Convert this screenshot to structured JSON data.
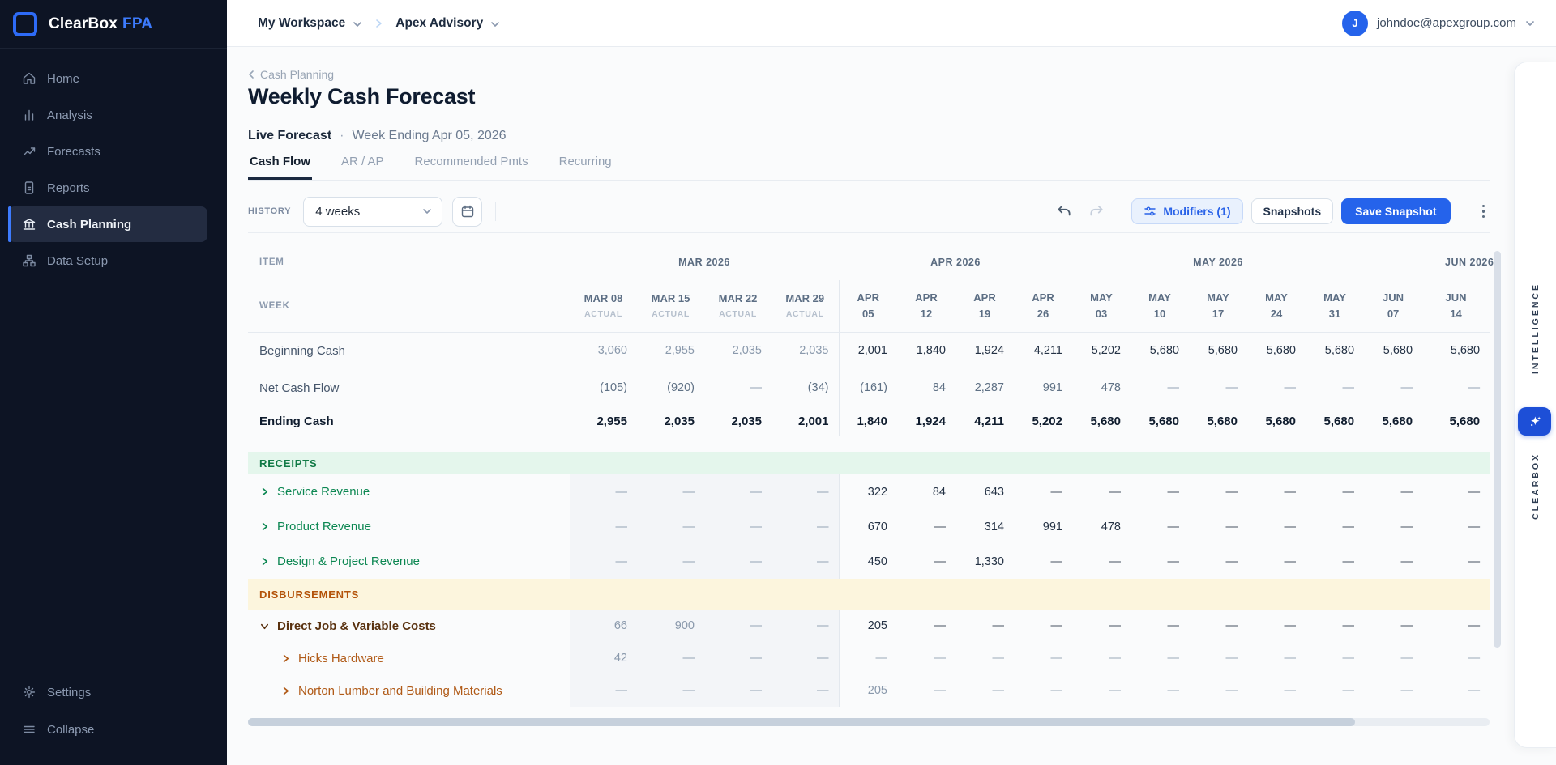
{
  "sidebar": {
    "brand": {
      "name": "ClearBox",
      "suffix": "FPA"
    },
    "items": [
      {
        "label": "Home",
        "icon": "home-icon",
        "active": false
      },
      {
        "label": "Analysis",
        "icon": "bar-chart-icon",
        "active": false
      },
      {
        "label": "Forecasts",
        "icon": "trend-icon",
        "active": false
      },
      {
        "label": "Reports",
        "icon": "document-icon",
        "active": false
      },
      {
        "label": "Cash Planning",
        "icon": "bank-icon",
        "active": true
      },
      {
        "label": "Data Setup",
        "icon": "sitemap-icon",
        "active": false
      }
    ],
    "footer": [
      {
        "label": "Settings",
        "icon": "gear-icon"
      },
      {
        "label": "Collapse",
        "icon": "hamburger-icon"
      }
    ]
  },
  "topbar": {
    "workspace": "My Workspace",
    "org": "Apex Advisory",
    "avatar_initial": "J",
    "user_email": "johndoe@apexgroup.com"
  },
  "header": {
    "breadcrumb": "Cash Planning",
    "title": "Weekly Cash Forecast",
    "status": "Live Forecast",
    "separator": "·",
    "week_ending": "Week Ending Apr 05, 2026",
    "tabs": [
      {
        "label": "Cash Flow",
        "active": true
      },
      {
        "label": "AR / AP",
        "active": false
      },
      {
        "label": "Recommended Pmts",
        "active": false
      },
      {
        "label": "Recurring",
        "active": false
      }
    ]
  },
  "toolbar": {
    "history_label": "HISTORY",
    "history_value": "4 weeks",
    "modifiers_label": "Modifiers (1)",
    "snapshots_label": "Snapshots",
    "save_label": "Save Snapshot"
  },
  "colors": {
    "accent_blue": "#2563eb",
    "receipts_green": "#117a46",
    "disbursements_amber": "#b45309",
    "sidebar_bg": "#0d1424"
  },
  "intelligence": {
    "top_text": "INTELLIGENCE",
    "bottom_text": "CLEARBOX",
    "icon": "sparkle-icon"
  },
  "table": {
    "item_header": "ITEM",
    "week_header": "WEEK",
    "actual_sub": "ACTUAL",
    "groups": [
      {
        "label": "MAR 2026",
        "span": 4,
        "clip": false
      },
      {
        "label": "APR 2026",
        "span": 4,
        "clip": false
      },
      {
        "label": "MAY 2026",
        "span": 5,
        "clip": false
      },
      {
        "label": "JUN 2026",
        "span": 2,
        "clip": true
      }
    ],
    "actual_cols": [
      "MAR 08",
      "MAR 15",
      "MAR 22",
      "MAR 29"
    ],
    "forecast_cols": [
      [
        "APR",
        "05"
      ],
      [
        "APR",
        "12"
      ],
      [
        "APR",
        "19"
      ],
      [
        "APR",
        "26"
      ],
      [
        "MAY",
        "03"
      ],
      [
        "MAY",
        "10"
      ],
      [
        "MAY",
        "17"
      ],
      [
        "MAY",
        "24"
      ],
      [
        "MAY",
        "31"
      ],
      [
        "JUN",
        "07"
      ],
      [
        "JUN",
        "14"
      ]
    ],
    "rows": [
      {
        "id": "beginning-cash",
        "type": "begin",
        "label": "Beginning Cash",
        "values": [
          "3,060",
          "2,955",
          "2,035",
          "2,035",
          "2,001",
          "1,840",
          "1,924",
          "4,211",
          "5,202",
          "5,680",
          "5,680",
          "5,680",
          "5,680",
          "5,680",
          "5,680"
        ]
      },
      {
        "id": "net-cash-flow",
        "type": "net",
        "label": "Net Cash Flow",
        "values": [
          "(105)",
          "(920)",
          "—",
          "(34)",
          "(161)",
          "84",
          "2,287",
          "991",
          "478",
          "—",
          "—",
          "—",
          "—",
          "—",
          "—"
        ]
      },
      {
        "id": "ending-cash",
        "type": "end",
        "label": "Ending Cash",
        "values": [
          "2,955",
          "2,035",
          "2,035",
          "2,001",
          "1,840",
          "1,924",
          "4,211",
          "5,202",
          "5,680",
          "5,680",
          "5,680",
          "5,680",
          "5,680",
          "5,680",
          "5,680"
        ]
      },
      {
        "id": "receipts",
        "type": "band",
        "band": "green",
        "label": "RECEIPTS"
      },
      {
        "id": "service-revenue",
        "type": "receipt",
        "chevron": "right",
        "label": "Service Revenue",
        "values": [
          "—",
          "—",
          "—",
          "—",
          "322",
          "84",
          "643",
          "—",
          "—",
          "—",
          "—",
          "—",
          "—",
          "—",
          "—"
        ]
      },
      {
        "id": "product-revenue",
        "type": "receipt",
        "chevron": "right",
        "label": "Product Revenue",
        "values": [
          "—",
          "—",
          "—",
          "—",
          "670",
          "—",
          "314",
          "991",
          "478",
          "—",
          "—",
          "—",
          "—",
          "—",
          "—"
        ]
      },
      {
        "id": "design-project-revenue",
        "type": "receipt",
        "chevron": "right",
        "label": "Design & Project Revenue",
        "values": [
          "—",
          "—",
          "—",
          "—",
          "450",
          "—",
          "1,330",
          "—",
          "—",
          "—",
          "—",
          "—",
          "—",
          "—",
          "—"
        ]
      },
      {
        "id": "disbursements",
        "type": "band",
        "band": "amber",
        "label": "DISBURSEMENTS"
      },
      {
        "id": "direct-job-variable-costs",
        "type": "disb-parent",
        "chevron": "down",
        "label": "Direct Job & Variable Costs",
        "values": [
          "66",
          "900",
          "—",
          "—",
          "205",
          "—",
          "—",
          "—",
          "—",
          "—",
          "—",
          "—",
          "—",
          "—",
          "—"
        ]
      },
      {
        "id": "hicks-hardware",
        "type": "disb-child",
        "chevron": "right",
        "indent": 1,
        "label": "Hicks Hardware",
        "values": [
          "42",
          "—",
          "—",
          "—",
          "—",
          "—",
          "—",
          "—",
          "—",
          "—",
          "—",
          "—",
          "—",
          "—",
          "—"
        ]
      },
      {
        "id": "norton-lumber-and-building-materials",
        "type": "disb-child",
        "chevron": "right",
        "indent": 1,
        "label": "Norton Lumber and Building Materials",
        "values": [
          "—",
          "—",
          "—",
          "—",
          "205",
          "—",
          "—",
          "—",
          "—",
          "—",
          "—",
          "—",
          "—",
          "—",
          "—"
        ]
      }
    ]
  }
}
